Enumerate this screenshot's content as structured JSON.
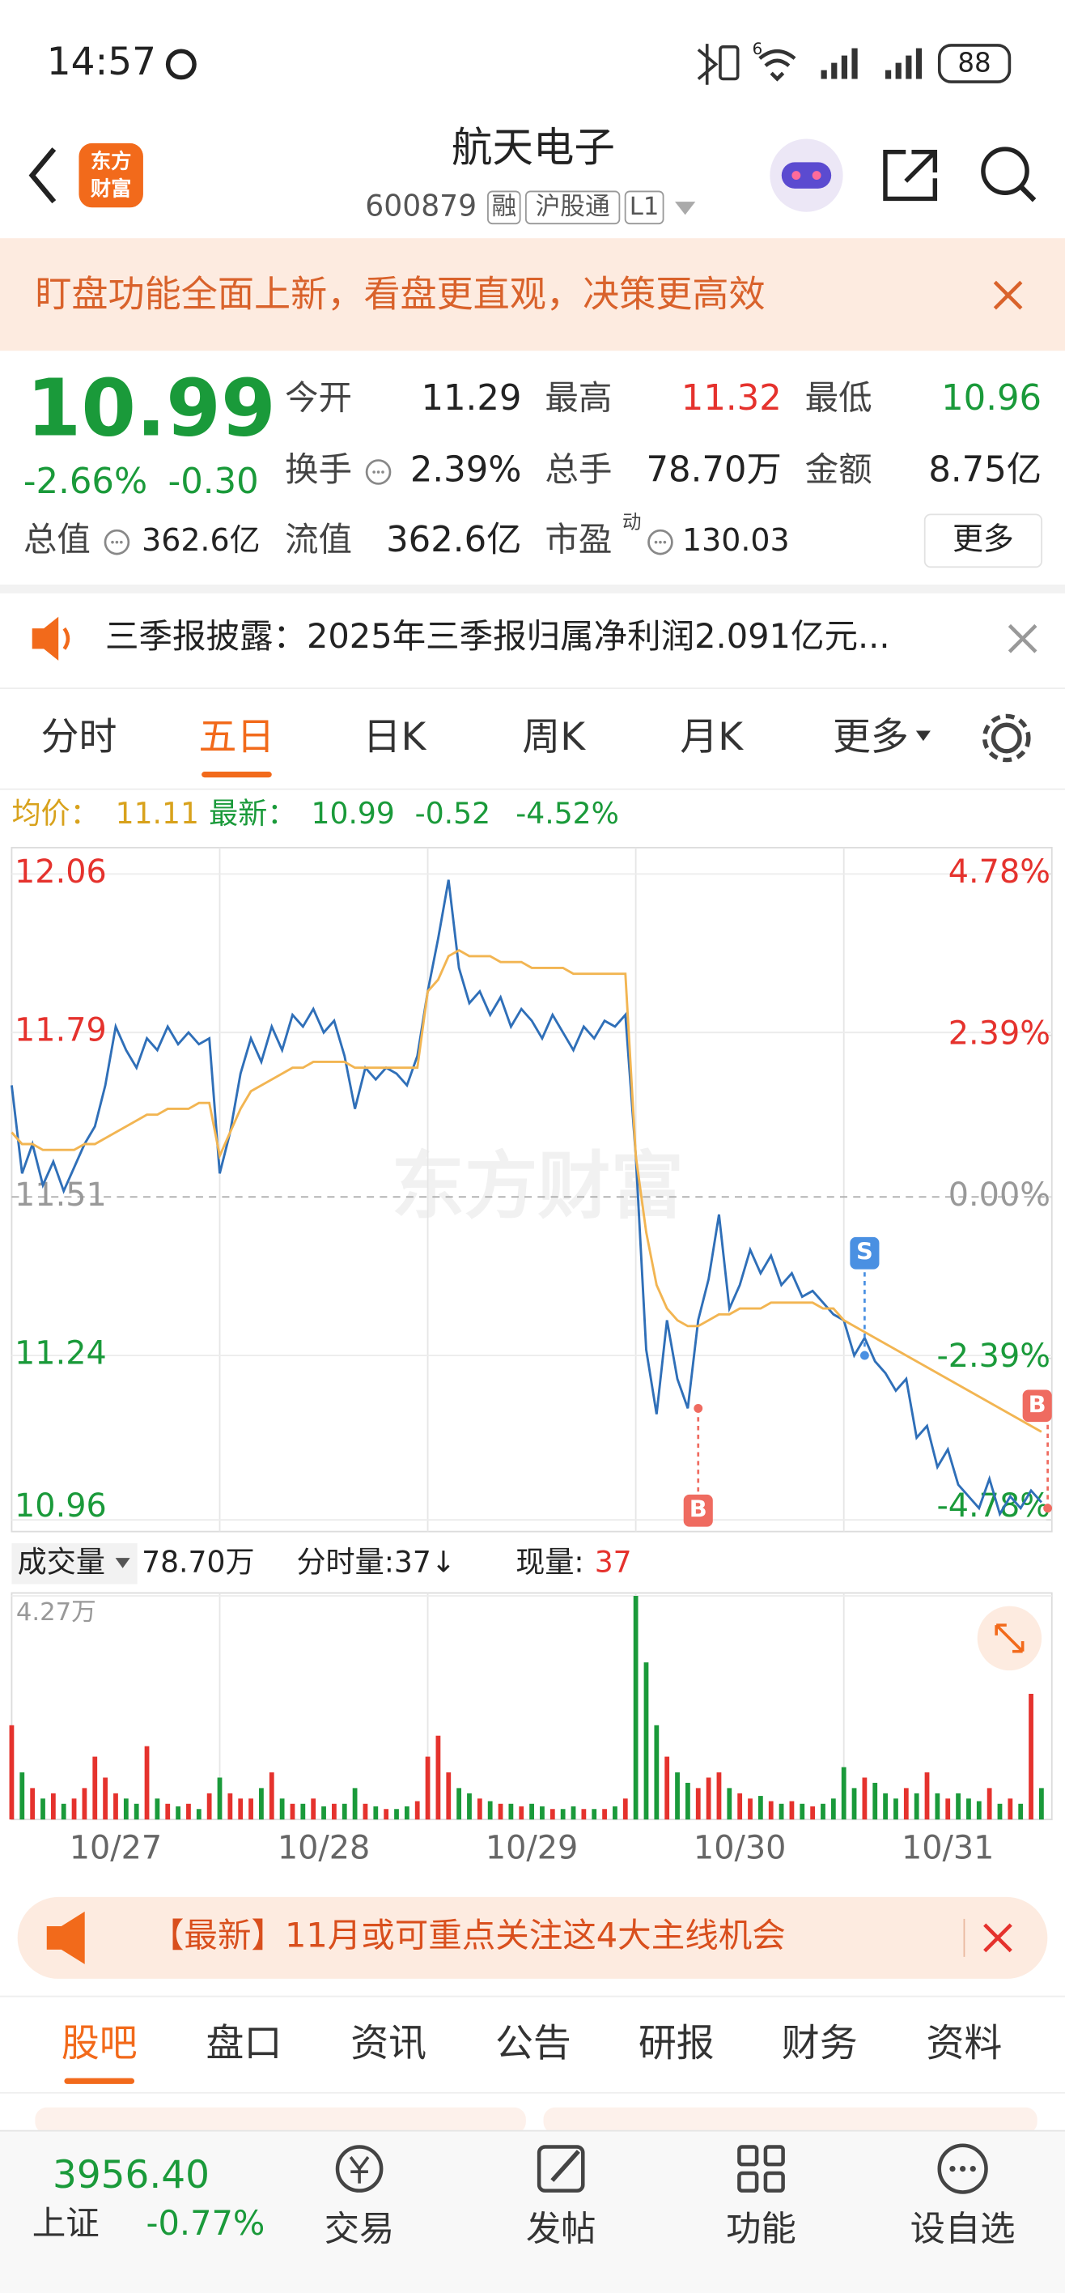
{
  "status_bar": {
    "time": "14:57",
    "network": "6",
    "battery": "88"
  },
  "header": {
    "logo": [
      "东方",
      "财富"
    ],
    "title": "航天电子",
    "code": "600879",
    "tags": [
      "融",
      "沪股通",
      "L1"
    ]
  },
  "banner": {
    "text": "盯盘功能全面上新，看盘更直观，决策更高效"
  },
  "quote": {
    "price": "10.99",
    "change_pct": "-2.66%",
    "change": "-0.30",
    "color": "#1a9a3a",
    "rows": [
      [
        {
          "label": "今开",
          "value": "11.29"
        },
        {
          "label": "最高",
          "value": "11.32",
          "color": "#e5322d"
        },
        {
          "label": "最低",
          "value": "10.96",
          "color": "#1a9a3a"
        }
      ],
      [
        {
          "label": "换手",
          "value": "2.39%",
          "info": true
        },
        {
          "label": "总手",
          "value": "78.70万"
        },
        {
          "label": "金额",
          "value": "8.75亿"
        }
      ],
      [
        {
          "label": "总值",
          "value": "362.6亿",
          "info": true
        },
        {
          "label": "流值",
          "value": "362.6亿"
        },
        {
          "label": "市盈",
          "sup": "动",
          "value": "130.03",
          "info": true
        }
      ]
    ],
    "more": "更多"
  },
  "notice": {
    "text": "三季报披露：2025年三季报归属净利润2.091亿元..."
  },
  "chart_tabs": {
    "items": [
      "分时",
      "五日",
      "日K",
      "周K",
      "月K",
      "更多"
    ],
    "active": 1
  },
  "chart_info": {
    "avg_label": "均价：",
    "avg": "11.11",
    "latest_label": "最新：",
    "latest": "10.99",
    "change": "-0.52",
    "change_pct": "-4.52%"
  },
  "watermark": "东方财富",
  "chart_data": [
    {
      "type": "line",
      "x": [
        0,
        0.05,
        0.1,
        0.15,
        0.2,
        0.25,
        0.3,
        0.35,
        0.4,
        0.45,
        0.5,
        0.55,
        0.6,
        0.65,
        0.7,
        0.75,
        0.8,
        0.85,
        0.9,
        0.95,
        1,
        1.05,
        1.1,
        1.15,
        1.2,
        1.25,
        1.3,
        1.35,
        1.4,
        1.45,
        1.5,
        1.55,
        1.6,
        1.65,
        1.7,
        1.75,
        1.8,
        1.85,
        1.9,
        1.95,
        2,
        2.05,
        2.1,
        2.15,
        2.2,
        2.25,
        2.3,
        2.35,
        2.4,
        2.45,
        2.5,
        2.55,
        2.6,
        2.65,
        2.7,
        2.75,
        2.8,
        2.85,
        2.9,
        2.95,
        3,
        3.05,
        3.1,
        3.15,
        3.2,
        3.25,
        3.3,
        3.35,
        3.4,
        3.45,
        3.5,
        3.55,
        3.6,
        3.65,
        3.7,
        3.75,
        3.8,
        3.85,
        3.9,
        3.95,
        4,
        4.05,
        4.1,
        4.15,
        4.2,
        4.25,
        4.3,
        4.35,
        4.4,
        4.45,
        4.5,
        4.55,
        4.6,
        4.65,
        4.7,
        4.75,
        4.8,
        4.85,
        4.9,
        4.95
      ],
      "xlim": [
        0,
        5
      ],
      "ylim": [
        10.96,
        12.06
      ],
      "yticks": [
        12.06,
        11.79,
        11.51,
        11.24,
        10.96
      ],
      "y2lim": [
        -4.78,
        4.78
      ],
      "y2ticks": [
        {
          "value": 4.78,
          "label": "4.78%"
        },
        {
          "value": 2.39,
          "label": "2.39%"
        },
        {
          "value": 0,
          "label": "0.00%"
        },
        {
          "value": -2.39,
          "label": "-2.39%"
        },
        {
          "value": -4.78,
          "label": "-4.78%"
        }
      ],
      "grid": true,
      "series": [
        {
          "color": "#2f6fb8",
          "values": [
            11.7,
            11.55,
            11.6,
            11.53,
            11.57,
            11.52,
            11.56,
            11.6,
            11.63,
            11.7,
            11.8,
            11.76,
            11.73,
            11.78,
            11.76,
            11.8,
            11.77,
            11.79,
            11.77,
            11.78,
            11.55,
            11.62,
            11.72,
            11.78,
            11.74,
            11.8,
            11.76,
            11.82,
            11.8,
            11.83,
            11.79,
            11.81,
            11.75,
            11.66,
            11.73,
            11.71,
            11.73,
            11.72,
            11.7,
            11.75,
            11.86,
            11.95,
            12.05,
            11.9,
            11.84,
            11.86,
            11.82,
            11.85,
            11.8,
            11.83,
            11.81,
            11.78,
            11.82,
            11.79,
            11.76,
            11.8,
            11.78,
            11.81,
            11.8,
            11.82,
            11.58,
            11.25,
            11.14,
            11.3,
            11.2,
            11.15,
            11.3,
            11.37,
            11.48,
            11.32,
            11.36,
            11.42,
            11.38,
            11.41,
            11.36,
            11.38,
            11.34,
            11.35,
            11.33,
            11.31,
            11.3,
            11.24,
            11.27,
            11.23,
            11.21,
            11.18,
            11.2,
            11.1,
            11.12,
            11.05,
            11.08,
            11.02,
            11.0,
            10.98,
            11.03,
            10.97,
            11.0,
            10.98,
            11.01,
            10.99
          ]
        },
        {
          "color": "#f2b552",
          "values": [
            11.62,
            11.6,
            11.6,
            11.59,
            11.59,
            11.59,
            11.59,
            11.6,
            11.6,
            11.61,
            11.62,
            11.63,
            11.64,
            11.65,
            11.65,
            11.66,
            11.66,
            11.66,
            11.67,
            11.67,
            11.58,
            11.62,
            11.66,
            11.69,
            11.7,
            11.71,
            11.72,
            11.73,
            11.73,
            11.74,
            11.74,
            11.74,
            11.74,
            11.73,
            11.73,
            11.73,
            11.73,
            11.73,
            11.73,
            11.73,
            11.86,
            11.88,
            11.92,
            11.93,
            11.92,
            11.92,
            11.92,
            11.91,
            11.91,
            11.91,
            11.9,
            11.9,
            11.9,
            11.9,
            11.89,
            11.89,
            11.89,
            11.89,
            11.89,
            11.89,
            11.58,
            11.45,
            11.36,
            11.32,
            11.3,
            11.29,
            11.29,
            11.3,
            11.31,
            11.31,
            11.32,
            11.32,
            11.32,
            11.33,
            11.33,
            11.33,
            11.33,
            11.33,
            11.32,
            11.32,
            11.3,
            11.29,
            11.28,
            11.27,
            11.26,
            11.25,
            11.24,
            11.23,
            11.22,
            11.21,
            11.2,
            11.19,
            11.18,
            11.17,
            11.16,
            11.15,
            11.14,
            11.13,
            11.12,
            11.11
          ]
        }
      ],
      "annotations": [
        {
          "label": "B",
          "x": 3.3,
          "y": 11.15,
          "color": "#ef6b60"
        },
        {
          "label": "S",
          "x": 4.1,
          "y": 11.24,
          "color": "#4a90e2"
        },
        {
          "label": "B",
          "x": 4.98,
          "y": 10.98,
          "color": "#ef6b60"
        }
      ]
    },
    {
      "type": "bar",
      "x": [
        0,
        0.05,
        0.1,
        0.15,
        0.2,
        0.25,
        0.3,
        0.35,
        0.4,
        0.45,
        0.5,
        0.55,
        0.6,
        0.65,
        0.7,
        0.75,
        0.8,
        0.85,
        0.9,
        0.95,
        1,
        1.05,
        1.1,
        1.15,
        1.2,
        1.25,
        1.3,
        1.35,
        1.4,
        1.45,
        1.5,
        1.55,
        1.6,
        1.65,
        1.7,
        1.75,
        1.8,
        1.85,
        1.9,
        1.95,
        2,
        2.05,
        2.1,
        2.15,
        2.2,
        2.25,
        2.3,
        2.35,
        2.4,
        2.45,
        2.5,
        2.55,
        2.6,
        2.65,
        2.7,
        2.75,
        2.8,
        2.85,
        2.9,
        2.95,
        3,
        3.05,
        3.1,
        3.15,
        3.2,
        3.25,
        3.3,
        3.35,
        3.4,
        3.45,
        3.5,
        3.55,
        3.6,
        3.65,
        3.7,
        3.75,
        3.8,
        3.85,
        3.9,
        3.95,
        4,
        4.05,
        4.1,
        4.15,
        4.2,
        4.25,
        4.3,
        4.35,
        4.4,
        4.45,
        4.5,
        4.55,
        4.6,
        4.65,
        4.7,
        4.75,
        4.8,
        4.85,
        4.9,
        4.95
      ],
      "xlim": [
        0,
        5
      ],
      "xticks": [
        {
          "value": 0.5,
          "label": "10/27"
        },
        {
          "value": 1.5,
          "label": "10/28"
        },
        {
          "value": 2.5,
          "label": "10/29"
        },
        {
          "value": 3.5,
          "label": "10/30"
        },
        {
          "value": 4.5,
          "label": "10/31"
        }
      ],
      "ylim": [
        0,
        42700
      ],
      "yticks": [
        {
          "value": 42700,
          "label": "4.27万"
        }
      ],
      "up_color": "#e5322d",
      "down_color": "#1a9a3a",
      "values": [
        18000,
        9000,
        6000,
        4000,
        5000,
        3000,
        4000,
        6000,
        12000,
        8000,
        5000,
        4000,
        3000,
        14000,
        4000,
        3000,
        2500,
        3000,
        2000,
        5000,
        8000,
        5000,
        4000,
        4000,
        6000,
        9000,
        4000,
        3000,
        3000,
        4000,
        2500,
        3000,
        3000,
        6000,
        3000,
        2500,
        2000,
        2000,
        2500,
        3500,
        12000,
        16000,
        9000,
        6000,
        5000,
        4000,
        3500,
        3000,
        3000,
        2500,
        3000,
        2500,
        2000,
        2000,
        2500,
        2000,
        2000,
        2000,
        2500,
        4000,
        42700,
        30000,
        18000,
        12000,
        9000,
        7000,
        6000,
        8000,
        9000,
        6000,
        5000,
        4000,
        4500,
        3500,
        3000,
        3500,
        3000,
        2500,
        3000,
        4000,
        10000,
        6000,
        8000,
        7000,
        5000,
        4000,
        6000,
        5000,
        9000,
        5000,
        4000,
        5000,
        4000,
        3500,
        6000,
        3000,
        4000,
        3000,
        24000,
        6000
      ]
    }
  ],
  "volume_info": {
    "label": "成交量",
    "total": "78.70万",
    "tick": "分时量:37↓",
    "now_label": "现量:",
    "now": "37"
  },
  "promo": {
    "text": "【最新】11月或可重点关注这4大主线机会"
  },
  "content_tabs": {
    "items": [
      "股吧",
      "盘口",
      "资讯",
      "公告",
      "研报",
      "财务",
      "资料"
    ],
    "active": 0
  },
  "bottom_bar": {
    "index_value": "3956.40",
    "index_name": "上证",
    "index_change": "-0.77%",
    "items": [
      "交易",
      "发帖",
      "功能",
      "设自选"
    ]
  }
}
